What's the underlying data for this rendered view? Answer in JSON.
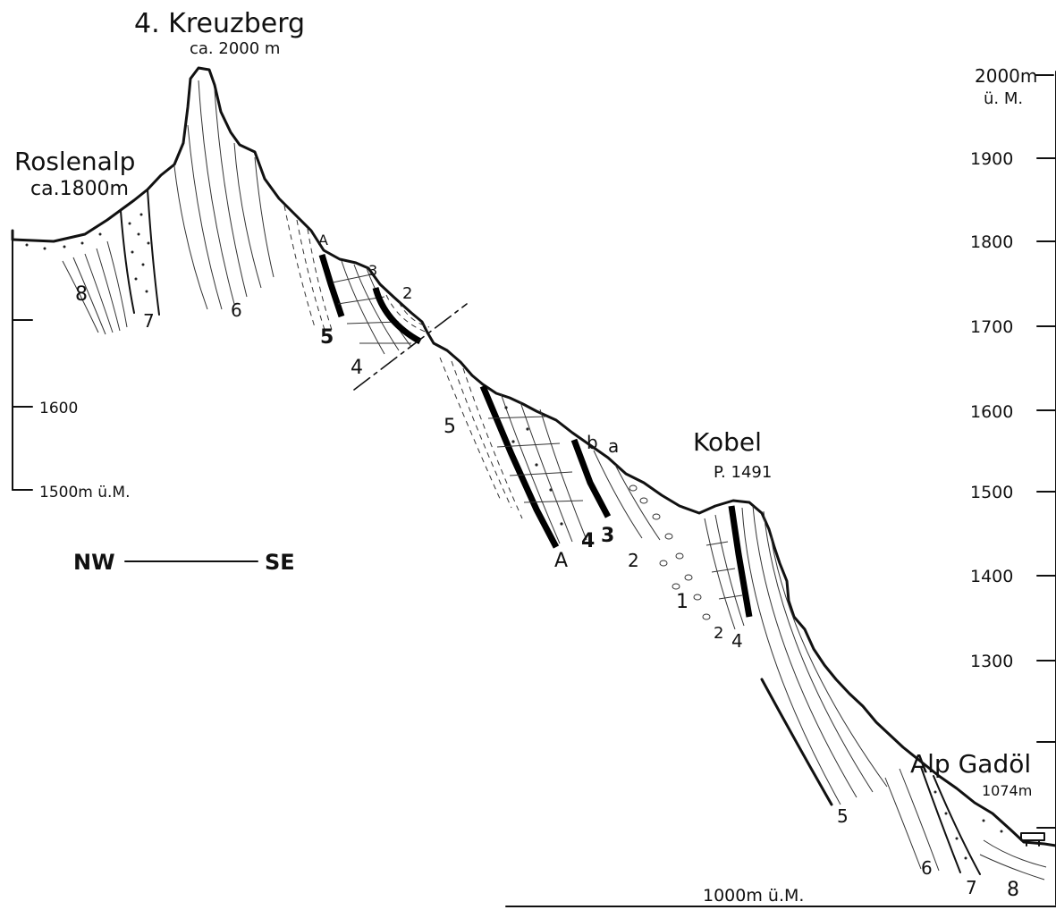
{
  "peaks": {
    "kreuzberg_name": "4. Kreuzberg",
    "kreuzberg_alt": "ca. 2000 m",
    "roslenalp_name": "Roslenalp",
    "roslenalp_alt": "ca.1800m",
    "kobel_name": "Kobel",
    "kobel_alt": "P. 1491",
    "gadoel_name": "Alp Gadöl",
    "gadoel_alt": "1074m"
  },
  "orientation": {
    "left": "NW",
    "right": "SE"
  },
  "right_scale": {
    "top_label": "2000m",
    "top_sub": "ü. M.",
    "ticks": [
      "1900",
      "1800",
      "1700",
      "1600",
      "1500",
      "1400",
      "1300"
    ],
    "bottom_label": "1000m  ü.M."
  },
  "left_scale": {
    "ticks": [
      "1600",
      "1500m  ü.M."
    ]
  },
  "unit_labels": {
    "u8a": "8",
    "u7a": "7",
    "u6a": "6",
    "uAa": "A",
    "u5a": "5",
    "u3a": "3",
    "u2a": "2",
    "u4a": "4",
    "u5b": "5",
    "uba": "b",
    "uaa": "a",
    "uAb": "A",
    "u4b": "4",
    "u3b": "3",
    "u2b": "2",
    "u1b": "1",
    "u2c": "2",
    "u4c": "4",
    "u5c": "5",
    "u6c": "6",
    "u7c": "7",
    "u8c": "8"
  },
  "colors": {
    "ink": "#111111",
    "paper": "#ffffff"
  }
}
